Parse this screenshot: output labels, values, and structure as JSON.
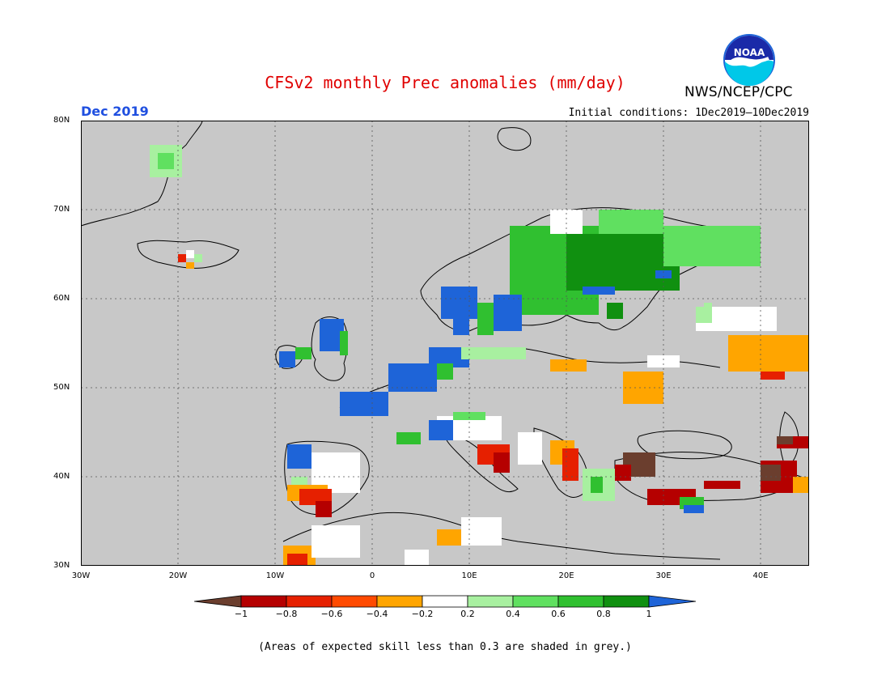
{
  "header": {
    "title": "CFSv2 monthly Prec anomalies (mm/day)",
    "org": "NWS/NCEP/CPC",
    "logo_text": "NOAA",
    "month": "Dec 2019",
    "initial_conditions": "Initial conditions: 1Dec2019—10Dec2019"
  },
  "map": {
    "lat_labels": [
      "80N",
      "70N",
      "60N",
      "50N",
      "40N",
      "30N"
    ],
    "lon_labels": [
      "30W",
      "20W",
      "10W",
      "0",
      "10E",
      "20E",
      "30E",
      "40E"
    ],
    "grid_lines": true,
    "background_color": "#c8c8c8"
  },
  "colorbar": {
    "labels": [
      "−1",
      "−0.8",
      "−0.6",
      "−0.4",
      "−0.2",
      "0.2",
      "0.4",
      "0.6",
      "0.8",
      "1"
    ],
    "colors": [
      "#6b3e2e",
      "#b50000",
      "#e62000",
      "#ff4a00",
      "#ffa500",
      "#ffffff",
      "#a8f0a0",
      "#60e060",
      "#30c030",
      "#109010",
      "#1e64d8"
    ]
  },
  "note": "(Areas of expected skill less than 0.3 are shaded in grey.)"
}
